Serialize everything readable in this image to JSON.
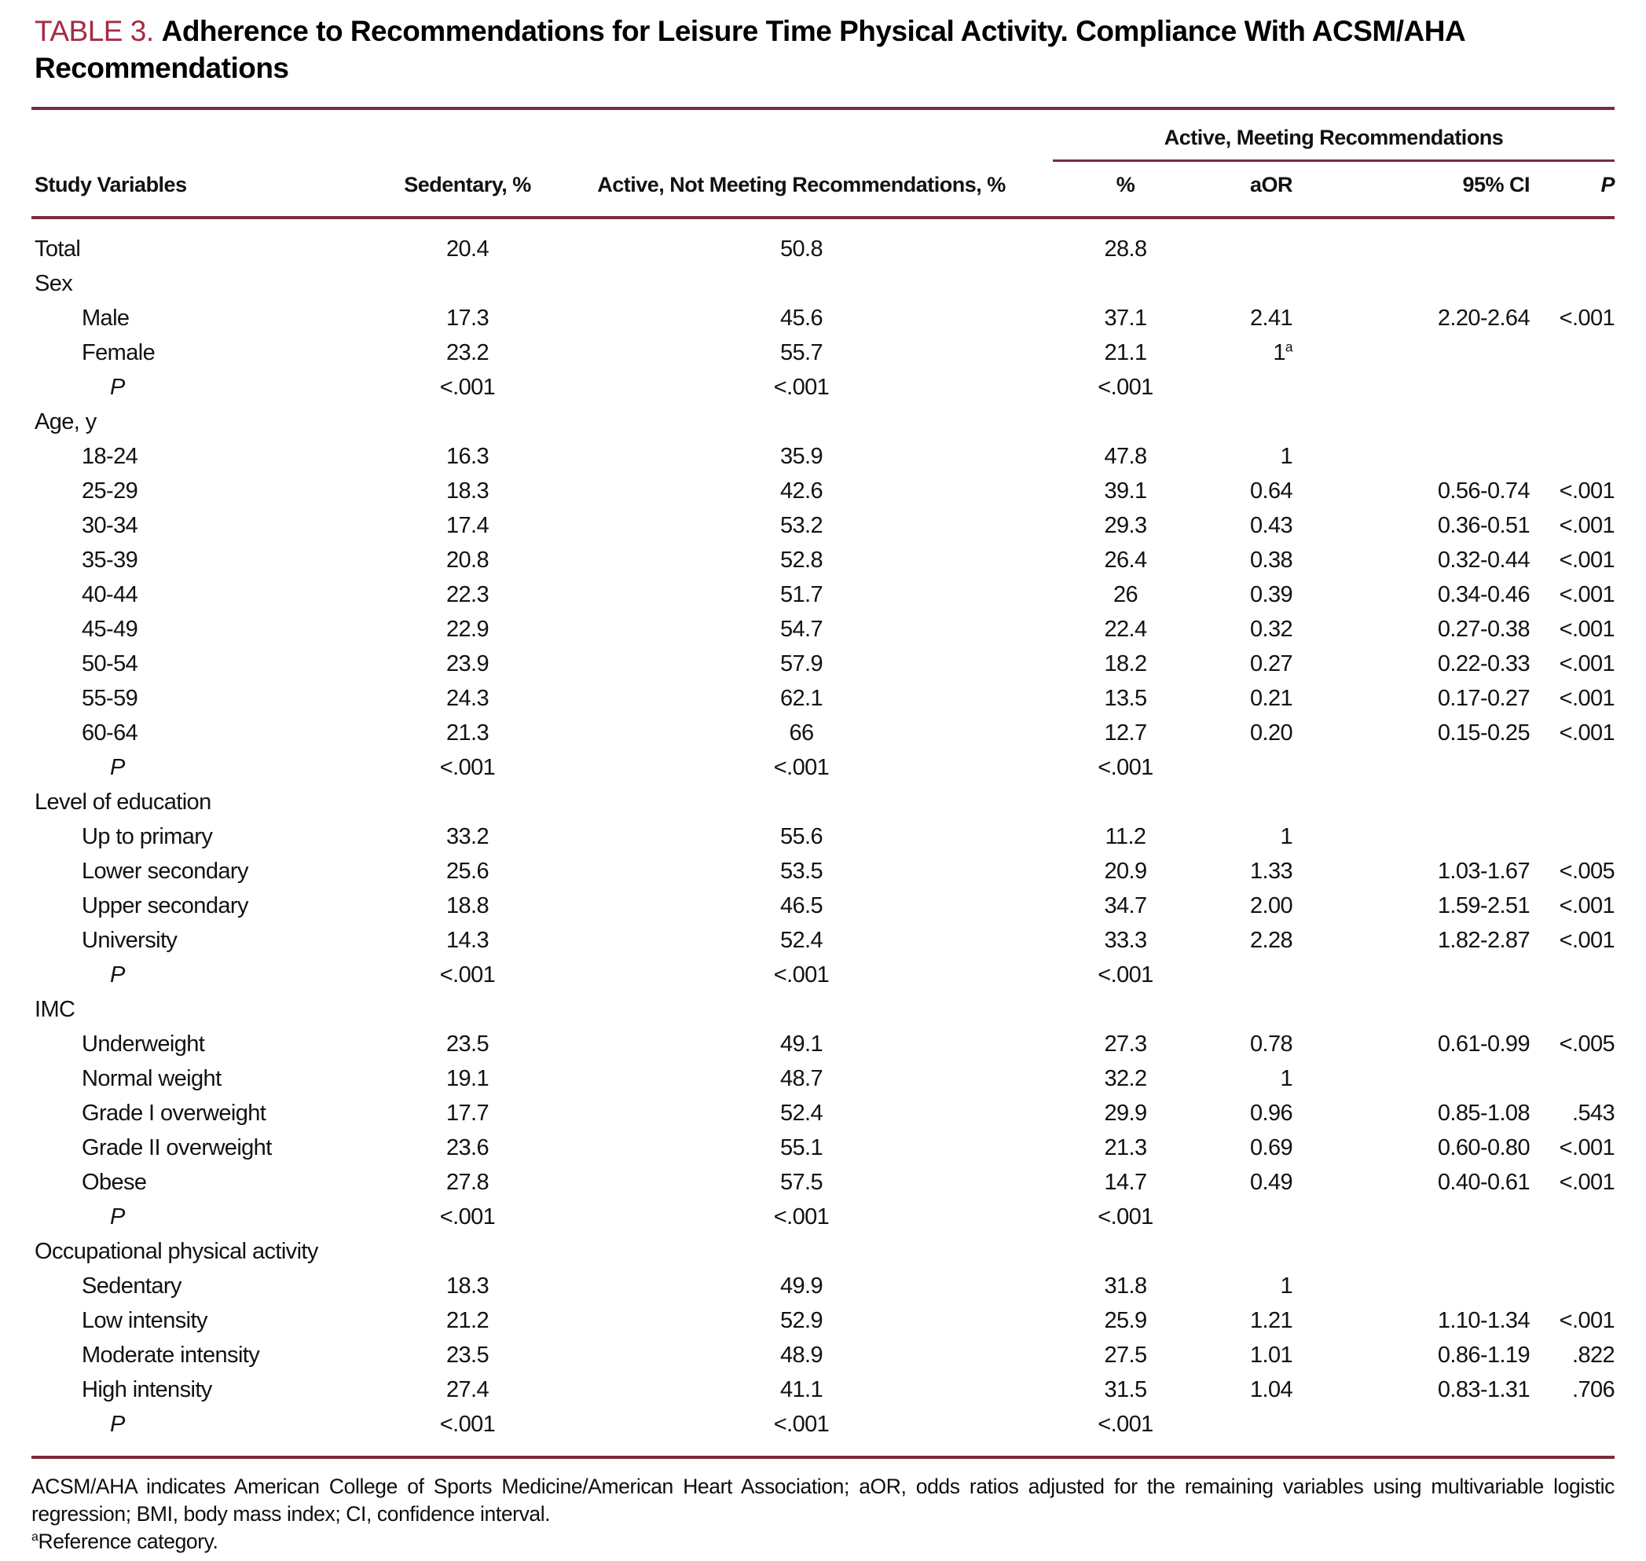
{
  "title": {
    "eyebrow": "TABLE 3.",
    "text": "Adherence to Recommendations for Leisure Time Physical Activity. Compliance With ACSM/AHA Recommendations"
  },
  "table": {
    "header": {
      "study_variables": "Study Variables",
      "sedentary": "Sedentary, %",
      "active_not_meeting": "Active, Not Meeting Recommendations, %",
      "group": "Active, Meeting Recommendations",
      "pct": "%",
      "aor": "aOR",
      "ci": "95% CI",
      "p": "P"
    },
    "rows": [
      {
        "label": "Total",
        "indent": 0,
        "sedentary": "20.4",
        "active_not_meeting": "50.8",
        "pct": "28.8"
      },
      {
        "label": "Sex",
        "indent": 0
      },
      {
        "label": "Male",
        "indent": 1,
        "sedentary": "17.3",
        "active_not_meeting": "45.6",
        "pct": "37.1",
        "aor": "2.41",
        "ci": "2.20-2.64",
        "p": "<.001"
      },
      {
        "label": "Female",
        "indent": 1,
        "sedentary": "23.2",
        "active_not_meeting": "55.7",
        "pct": "21.1",
        "aor": "1",
        "aor_sup": "a"
      },
      {
        "label": "P",
        "indent": 2,
        "italic": true,
        "sedentary": "<.001",
        "active_not_meeting": "<.001",
        "pct": "<.001"
      },
      {
        "label": "Age, y",
        "indent": 0
      },
      {
        "label": "18-24",
        "indent": 1,
        "sedentary": "16.3",
        "active_not_meeting": "35.9",
        "pct": "47.8",
        "aor": "1"
      },
      {
        "label": "25-29",
        "indent": 1,
        "sedentary": "18.3",
        "active_not_meeting": "42.6",
        "pct": "39.1",
        "aor": "0.64",
        "ci": "0.56-0.74",
        "p": "<.001"
      },
      {
        "label": "30-34",
        "indent": 1,
        "sedentary": "17.4",
        "active_not_meeting": "53.2",
        "pct": "29.3",
        "aor": "0.43",
        "ci": "0.36-0.51",
        "p": "<.001"
      },
      {
        "label": "35-39",
        "indent": 1,
        "sedentary": "20.8",
        "active_not_meeting": "52.8",
        "pct": "26.4",
        "aor": "0.38",
        "ci": "0.32-0.44",
        "p": "<.001"
      },
      {
        "label": "40-44",
        "indent": 1,
        "sedentary": "22.3",
        "active_not_meeting": "51.7",
        "pct": "26",
        "aor": "0.39",
        "ci": "0.34-0.46",
        "p": "<.001"
      },
      {
        "label": "45-49",
        "indent": 1,
        "sedentary": "22.9",
        "active_not_meeting": "54.7",
        "pct": "22.4",
        "aor": "0.32",
        "ci": "0.27-0.38",
        "p": "<.001"
      },
      {
        "label": "50-54",
        "indent": 1,
        "sedentary": "23.9",
        "active_not_meeting": "57.9",
        "pct": "18.2",
        "aor": "0.27",
        "ci": "0.22-0.33",
        "p": "<.001"
      },
      {
        "label": "55-59",
        "indent": 1,
        "sedentary": "24.3",
        "active_not_meeting": "62.1",
        "pct": "13.5",
        "aor": "0.21",
        "ci": "0.17-0.27",
        "p": "<.001"
      },
      {
        "label": "60-64",
        "indent": 1,
        "sedentary": "21.3",
        "active_not_meeting": "66",
        "pct": "12.7",
        "aor": "0.20",
        "ci": "0.15-0.25",
        "p": "<.001"
      },
      {
        "label": "P",
        "indent": 2,
        "italic": true,
        "sedentary": "<.001",
        "active_not_meeting": "<.001",
        "pct": "<.001"
      },
      {
        "label": "Level of education",
        "indent": 0
      },
      {
        "label": "Up to primary",
        "indent": 1,
        "sedentary": "33.2",
        "active_not_meeting": "55.6",
        "pct": "11.2",
        "aor": "1"
      },
      {
        "label": "Lower secondary",
        "indent": 1,
        "sedentary": "25.6",
        "active_not_meeting": "53.5",
        "pct": "20.9",
        "aor": "1.33",
        "ci": "1.03-1.67",
        "p": "<.005"
      },
      {
        "label": "Upper secondary",
        "indent": 1,
        "sedentary": "18.8",
        "active_not_meeting": "46.5",
        "pct": "34.7",
        "aor": "2.00",
        "ci": "1.59-2.51",
        "p": "<.001"
      },
      {
        "label": "University",
        "indent": 1,
        "sedentary": "14.3",
        "active_not_meeting": "52.4",
        "pct": "33.3",
        "aor": "2.28",
        "ci": "1.82-2.87",
        "p": "<.001"
      },
      {
        "label": "P",
        "indent": 2,
        "italic": true,
        "sedentary": "<.001",
        "active_not_meeting": "<.001",
        "pct": "<.001"
      },
      {
        "label": "IMC",
        "indent": 0
      },
      {
        "label": "Underweight",
        "indent": 1,
        "sedentary": "23.5",
        "active_not_meeting": "49.1",
        "pct": "27.3",
        "aor": "0.78",
        "ci": "0.61-0.99",
        "p": "<.005"
      },
      {
        "label": "Normal weight",
        "indent": 1,
        "sedentary": "19.1",
        "active_not_meeting": "48.7",
        "pct": "32.2",
        "aor": "1"
      },
      {
        "label": "Grade I overweight",
        "indent": 1,
        "sedentary": "17.7",
        "active_not_meeting": "52.4",
        "pct": "29.9",
        "aor": "0.96",
        "ci": "0.85-1.08",
        "p": ".543"
      },
      {
        "label": "Grade II overweight",
        "indent": 1,
        "sedentary": "23.6",
        "active_not_meeting": "55.1",
        "pct": "21.3",
        "aor": "0.69",
        "ci": "0.60-0.80",
        "p": "<.001"
      },
      {
        "label": "Obese",
        "indent": 1,
        "sedentary": "27.8",
        "active_not_meeting": "57.5",
        "pct": "14.7",
        "aor": "0.49",
        "ci": "0.40-0.61",
        "p": "<.001"
      },
      {
        "label": "P",
        "indent": 2,
        "italic": true,
        "sedentary": "<.001",
        "active_not_meeting": "<.001",
        "pct": "<.001"
      },
      {
        "label": "Occupational physical activity",
        "indent": 0
      },
      {
        "label": "Sedentary",
        "indent": 1,
        "sedentary": "18.3",
        "active_not_meeting": "49.9",
        "pct": "31.8",
        "aor": "1"
      },
      {
        "label": "Low intensity",
        "indent": 1,
        "sedentary": "21.2",
        "active_not_meeting": "52.9",
        "pct": "25.9",
        "aor": "1.21",
        "ci": "1.10-1.34",
        "p": "<.001"
      },
      {
        "label": "Moderate intensity",
        "indent": 1,
        "sedentary": "23.5",
        "active_not_meeting": "48.9",
        "pct": "27.5",
        "aor": "1.01",
        "ci": "0.86-1.19",
        "p": ".822"
      },
      {
        "label": "High intensity",
        "indent": 1,
        "sedentary": "27.4",
        "active_not_meeting": "41.1",
        "pct": "31.5",
        "aor": "1.04",
        "ci": "0.83-1.31",
        "p": ".706"
      },
      {
        "label": "P",
        "indent": 2,
        "italic": true,
        "sedentary": "<.001",
        "active_not_meeting": "<.001",
        "pct": "<.001"
      }
    ]
  },
  "footnotes": {
    "abbreviations": "ACSM/AHA indicates American College of Sports Medicine/American Heart Association; aOR, odds ratios adjusted for the remaining variables using multivariable logistic regression; BMI, body mass index; CI, confidence interval.",
    "reference": {
      "sup": "a",
      "text": "Reference category."
    }
  },
  "colors": {
    "accent_title": "#a52b45",
    "rule": "#7a2c3d"
  }
}
